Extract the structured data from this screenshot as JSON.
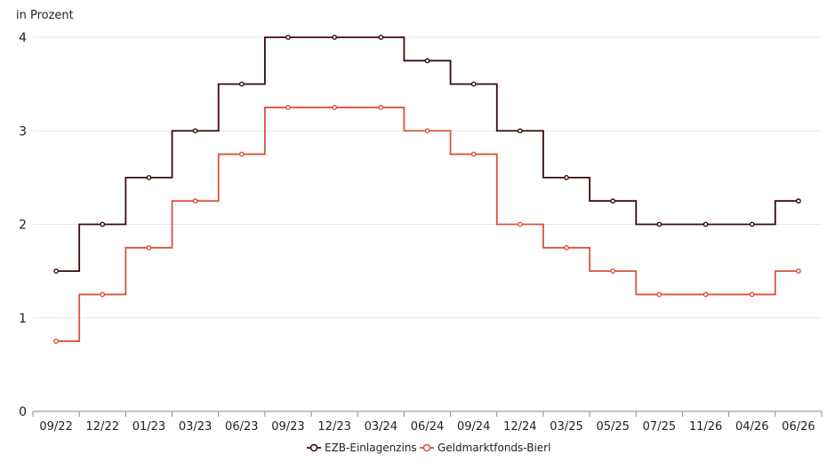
{
  "chart_data": {
    "type": "line",
    "step": true,
    "unit_label": "in Prozent",
    "categories": [
      "09/22",
      "12/22",
      "01/23",
      "03/23",
      "06/23",
      "09/23",
      "12/23",
      "03/24",
      "06/24",
      "09/24",
      "12/24",
      "03/25",
      "05/25",
      "07/25",
      "11/26",
      "04/26",
      "06/26"
    ],
    "ylim": [
      0,
      4
    ],
    "yticks": [
      "0",
      "1",
      "2",
      "3",
      "4"
    ],
    "grid": true,
    "legend_position": "bottom-center",
    "series": [
      {
        "name": "EZB-Einlagenzins",
        "color": "#3a0a0a",
        "values": [
          1.5,
          2.0,
          2.5,
          3.0,
          3.5,
          4.0,
          4.0,
          4.0,
          3.75,
          3.5,
          3.0,
          2.5,
          2.25,
          2.0,
          2.0,
          2.0,
          2.25
        ]
      },
      {
        "name": "Geldmarktfonds-Bierl",
        "color": "#d9533f",
        "values": [
          0.75,
          1.25,
          1.75,
          2.25,
          2.75,
          3.25,
          3.25,
          3.25,
          3.0,
          2.75,
          2.0,
          1.75,
          1.5,
          1.25,
          1.25,
          1.25,
          1.5
        ]
      }
    ]
  }
}
